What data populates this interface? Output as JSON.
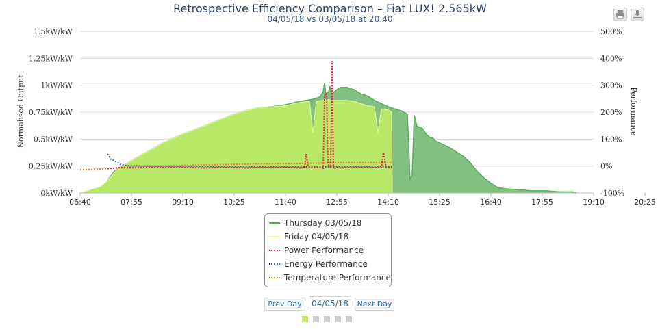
{
  "header": {
    "title": "Retrospective Efficiency Comparison – Fiat LUX! 2.565kW",
    "subtitle": "04/05/18 vs 03/05/18 at 20:40"
  },
  "toolbar": {
    "print_icon": "printer-icon",
    "download_icon": "download-icon"
  },
  "navigation": {
    "prev_label": "Prev Day",
    "date_value": "04/05/18",
    "next_label": "Next Day",
    "pages": 5,
    "active_page": 0,
    "active_color": "#c6ea64",
    "inactive_color": "#cccccc"
  },
  "colors": {
    "thursday_fill": "#82c182",
    "thursday_line": "#5aab5a",
    "friday_fill": "#b7e868",
    "friday_line": "#e9fca6",
    "power": "#e0253a",
    "energy": "#2b5f96",
    "temperature": "#f07a3c"
  },
  "chart_data": {
    "type": "area",
    "title": "Retrospective Efficiency Comparison – Fiat LUX! 2.565kW",
    "subtitle": "04/05/18 vs 03/05/18 at 20:40",
    "xlabel": "",
    "ylabel_left": "Normalised Output",
    "ylabel_right": "Performance",
    "x_ticks": [
      "06:40",
      "07:55",
      "09:10",
      "10:25",
      "11:40",
      "12:55",
      "14:10",
      "15:25",
      "16:40",
      "17:55",
      "19:10",
      "20:25"
    ],
    "y_left_ticks": [
      "0kW/kW",
      "0.25kW/kW",
      "0.5kW/kW",
      "0.75kW/kW",
      "1kW/kW",
      "1.25kW/kW",
      "1.5kW/kW"
    ],
    "y_right_ticks": [
      "-100%",
      "0%",
      "100%",
      "200%",
      "300%",
      "400%",
      "500%"
    ],
    "ylim_left": [
      0,
      1.5
    ],
    "ylim_right": [
      -100,
      500
    ],
    "grid": true,
    "legend_position": "bottom-center",
    "series": [
      {
        "name": "Thursday 03/05/18",
        "kind": "area",
        "axis": "left",
        "points": [
          [
            400,
            0
          ],
          [
            410,
            0.01
          ],
          [
            420,
            0.03
          ],
          [
            430,
            0.05
          ],
          [
            440,
            0.11
          ],
          [
            445,
            0.16
          ],
          [
            450,
            0.2
          ],
          [
            460,
            0.24
          ],
          [
            470,
            0.28
          ],
          [
            480,
            0.32
          ],
          [
            500,
            0.39
          ],
          [
            520,
            0.46
          ],
          [
            540,
            0.52
          ],
          [
            560,
            0.57
          ],
          [
            580,
            0.62
          ],
          [
            600,
            0.67
          ],
          [
            620,
            0.72
          ],
          [
            640,
            0.76
          ],
          [
            660,
            0.79
          ],
          [
            680,
            0.8
          ],
          [
            700,
            0.82
          ],
          [
            720,
            0.85
          ],
          [
            740,
            0.87
          ],
          [
            750,
            0.89
          ],
          [
            755,
            0.94
          ],
          [
            757,
            1.02
          ],
          [
            759,
            0.92
          ],
          [
            763,
            0.94
          ],
          [
            765,
            0.99
          ],
          [
            767,
            0.92
          ],
          [
            770,
            0.93
          ],
          [
            775,
            0.96
          ],
          [
            780,
            0.98
          ],
          [
            790,
            0.98
          ],
          [
            800,
            0.96
          ],
          [
            810,
            0.92
          ],
          [
            820,
            0.9
          ],
          [
            830,
            0.86
          ],
          [
            840,
            0.83
          ],
          [
            850,
            0.8
          ],
          [
            860,
            0.78
          ],
          [
            870,
            0.76
          ],
          [
            878,
            0.73
          ],
          [
            882,
            0.12
          ],
          [
            885,
            0.17
          ],
          [
            888,
            0.72
          ],
          [
            892,
            0.62
          ],
          [
            900,
            0.6
          ],
          [
            905,
            0.55
          ],
          [
            910,
            0.52
          ],
          [
            915,
            0.51
          ],
          [
            920,
            0.48
          ],
          [
            930,
            0.45
          ],
          [
            940,
            0.42
          ],
          [
            950,
            0.38
          ],
          [
            960,
            0.34
          ],
          [
            970,
            0.28
          ],
          [
            980,
            0.2
          ],
          [
            990,
            0.14
          ],
          [
            1000,
            0.09
          ],
          [
            1010,
            0.05
          ],
          [
            1020,
            0.04
          ],
          [
            1040,
            0.03
          ],
          [
            1060,
            0.02
          ],
          [
            1080,
            0.02
          ],
          [
            1100,
            0.01
          ],
          [
            1120,
            0.01
          ],
          [
            1125,
            0
          ]
        ]
      },
      {
        "name": "Friday 04/05/18",
        "kind": "area",
        "axis": "left",
        "points": [
          [
            400,
            0
          ],
          [
            410,
            0.02
          ],
          [
            420,
            0.04
          ],
          [
            430,
            0.06
          ],
          [
            440,
            0.11
          ],
          [
            450,
            0.19
          ],
          [
            460,
            0.24
          ],
          [
            470,
            0.28
          ],
          [
            480,
            0.32
          ],
          [
            500,
            0.39
          ],
          [
            520,
            0.46
          ],
          [
            540,
            0.52
          ],
          [
            560,
            0.57
          ],
          [
            580,
            0.62
          ],
          [
            600,
            0.67
          ],
          [
            620,
            0.72
          ],
          [
            640,
            0.76
          ],
          [
            660,
            0.79
          ],
          [
            680,
            0.8
          ],
          [
            700,
            0.81
          ],
          [
            720,
            0.84
          ],
          [
            735,
            0.85
          ],
          [
            740,
            0.56
          ],
          [
            745,
            0.85
          ],
          [
            755,
            0.86
          ],
          [
            760,
            0.87
          ],
          [
            770,
            0.86
          ],
          [
            780,
            0.86
          ],
          [
            790,
            0.86
          ],
          [
            800,
            0.85
          ],
          [
            810,
            0.83
          ],
          [
            820,
            0.81
          ],
          [
            830,
            0.8
          ],
          [
            835,
            0.56
          ],
          [
            840,
            0.78
          ],
          [
            850,
            0.77
          ],
          [
            855,
            0.75
          ],
          [
            856,
            0
          ]
        ]
      },
      {
        "name": "Power Performance",
        "kind": "dotted",
        "axis": "right",
        "points": [
          [
            440,
            -10
          ],
          [
            450,
            -8
          ],
          [
            460,
            -6
          ],
          [
            470,
            -7
          ],
          [
            480,
            -7
          ],
          [
            500,
            -5
          ],
          [
            520,
            -6
          ],
          [
            540,
            -5
          ],
          [
            560,
            -6
          ],
          [
            580,
            -7
          ],
          [
            600,
            -6
          ],
          [
            620,
            -6
          ],
          [
            640,
            -7
          ],
          [
            660,
            -6
          ],
          [
            680,
            -6
          ],
          [
            700,
            -5
          ],
          [
            720,
            -7
          ],
          [
            728,
            -6
          ],
          [
            730,
            45
          ],
          [
            733,
            -3
          ],
          [
            740,
            -7
          ],
          [
            750,
            -5
          ],
          [
            755,
            -8
          ],
          [
            757,
            260
          ],
          [
            760,
            270
          ],
          [
            762,
            10
          ],
          [
            764,
            -3
          ],
          [
            766,
            -5
          ],
          [
            768,
            390
          ],
          [
            770,
            -10
          ],
          [
            775,
            -6
          ],
          [
            780,
            -7
          ],
          [
            790,
            -6
          ],
          [
            800,
            -5
          ],
          [
            810,
            -5
          ],
          [
            820,
            -5
          ],
          [
            830,
            -6
          ],
          [
            840,
            -6
          ],
          [
            843,
            50
          ],
          [
            847,
            -5
          ],
          [
            855,
            -6
          ]
        ]
      },
      {
        "name": "Energy Performance",
        "kind": "dotted",
        "axis": "right",
        "points": [
          [
            440,
            45
          ],
          [
            445,
            25
          ],
          [
            450,
            20
          ],
          [
            460,
            5
          ],
          [
            470,
            1
          ],
          [
            480,
            1
          ],
          [
            500,
            0
          ],
          [
            520,
            -1
          ],
          [
            540,
            -1
          ],
          [
            560,
            -1
          ],
          [
            580,
            -1
          ],
          [
            600,
            -2
          ],
          [
            620,
            -2
          ],
          [
            640,
            -2
          ],
          [
            660,
            -3
          ],
          [
            680,
            -3
          ],
          [
            700,
            -3
          ],
          [
            720,
            -3
          ],
          [
            740,
            -4
          ],
          [
            760,
            -3
          ],
          [
            780,
            -2
          ],
          [
            800,
            -2
          ],
          [
            820,
            -2
          ],
          [
            840,
            -2
          ],
          [
            855,
            -2
          ]
        ]
      },
      {
        "name": "Temperature Performance",
        "kind": "dotted",
        "axis": "right",
        "points": [
          [
            400,
            -14
          ],
          [
            420,
            -12
          ],
          [
            440,
            -10
          ],
          [
            460,
            -5
          ],
          [
            480,
            -2
          ],
          [
            500,
            0
          ],
          [
            520,
            1
          ],
          [
            540,
            2
          ],
          [
            560,
            3
          ],
          [
            580,
            4
          ],
          [
            600,
            5
          ],
          [
            620,
            6
          ],
          [
            640,
            7
          ],
          [
            660,
            8
          ],
          [
            680,
            8
          ],
          [
            700,
            9
          ],
          [
            720,
            9
          ],
          [
            740,
            10
          ],
          [
            760,
            11
          ],
          [
            780,
            12
          ],
          [
            800,
            12
          ],
          [
            820,
            12
          ],
          [
            840,
            12
          ],
          [
            855,
            13
          ]
        ]
      }
    ]
  }
}
